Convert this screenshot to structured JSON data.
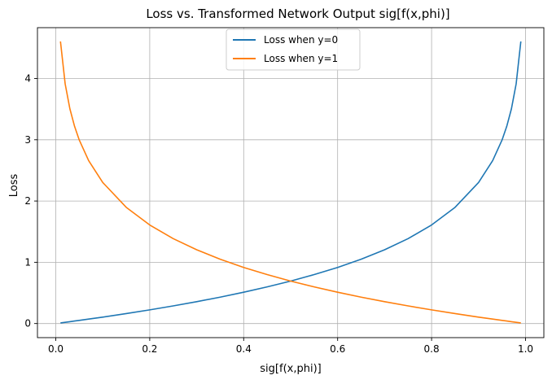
{
  "chart_data": {
    "type": "line",
    "title": "Loss vs. Transformed Network Output sig[f(x,phi)]",
    "xlabel": "sig[f(x,phi)]",
    "ylabel": "Loss",
    "xlim": [
      -0.039,
      1.039
    ],
    "ylim": [
      -0.23,
      4.83
    ],
    "x_ticks": [
      "0.0",
      "0.2",
      "0.4",
      "0.6",
      "0.8",
      "1.0"
    ],
    "y_ticks": [
      "0",
      "1",
      "2",
      "3",
      "4"
    ],
    "grid": true,
    "legend_position": "top-center",
    "x": [
      0.01,
      0.02,
      0.03,
      0.04,
      0.05,
      0.07,
      0.1,
      0.15,
      0.2,
      0.25,
      0.3,
      0.35,
      0.4,
      0.45,
      0.5,
      0.55,
      0.6,
      0.65,
      0.7,
      0.75,
      0.8,
      0.85,
      0.9,
      0.93,
      0.95,
      0.96,
      0.97,
      0.98,
      0.99
    ],
    "series": [
      {
        "name": "Loss when y=0",
        "color": "#1f77b4",
        "values": [
          0.01,
          0.02,
          0.03,
          0.041,
          0.051,
          0.073,
          0.105,
          0.163,
          0.223,
          0.288,
          0.357,
          0.431,
          0.511,
          0.598,
          0.693,
          0.799,
          0.916,
          1.05,
          1.204,
          1.386,
          1.609,
          1.897,
          2.303,
          2.659,
          2.996,
          3.219,
          3.507,
          3.912,
          4.605
        ]
      },
      {
        "name": "Loss when y=1",
        "color": "#ff7f0e",
        "values": [
          4.605,
          3.912,
          3.507,
          3.219,
          2.996,
          2.659,
          2.303,
          1.897,
          1.609,
          1.386,
          1.204,
          1.05,
          0.916,
          0.799,
          0.693,
          0.598,
          0.511,
          0.431,
          0.357,
          0.288,
          0.223,
          0.163,
          0.105,
          0.073,
          0.051,
          0.041,
          0.03,
          0.02,
          0.01
        ]
      }
    ]
  }
}
